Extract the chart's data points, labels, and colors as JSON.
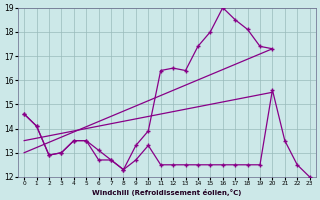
{
  "xlabel": "Windchill (Refroidissement éolien,°C)",
  "background_color": "#cce8e8",
  "line_color": "#880088",
  "grid_color": "#99bbbb",
  "xlim": [
    -0.5,
    23.5
  ],
  "ylim": [
    12,
    19
  ],
  "yticks": [
    12,
    13,
    14,
    15,
    16,
    17,
    18,
    19
  ],
  "xticks": [
    0,
    1,
    2,
    3,
    4,
    5,
    6,
    7,
    8,
    9,
    10,
    11,
    12,
    13,
    14,
    15,
    16,
    17,
    18,
    19,
    20,
    21,
    22,
    23
  ],
  "line1_x": [
    0,
    1,
    2,
    3,
    4,
    5,
    6,
    7,
    8,
    9,
    10,
    11,
    12,
    13,
    14,
    15,
    16,
    17,
    18,
    19,
    20
  ],
  "line1_y": [
    14.6,
    14.1,
    12.9,
    13.0,
    13.5,
    13.5,
    13.1,
    12.7,
    12.3,
    13.3,
    13.9,
    16.4,
    16.5,
    16.4,
    17.4,
    18.0,
    19.0,
    18.5,
    18.1,
    17.4,
    17.3
  ],
  "line2_x": [
    0,
    1,
    2,
    3,
    4,
    5,
    6,
    7,
    8,
    9,
    10,
    11,
    12,
    13,
    14,
    15,
    16,
    17,
    18,
    19,
    20,
    21,
    22,
    23
  ],
  "line2_y": [
    14.6,
    14.1,
    12.9,
    13.0,
    13.5,
    13.5,
    12.7,
    12.7,
    12.3,
    12.7,
    13.3,
    12.5,
    12.5,
    12.5,
    12.5,
    12.5,
    12.5,
    12.5,
    12.5,
    12.5,
    15.6,
    13.5,
    12.5,
    12.0
  ],
  "line3_x": [
    0,
    20
  ],
  "line3_y": [
    13.0,
    17.3
  ],
  "line4_x": [
    0,
    20
  ],
  "line4_y": [
    13.5,
    15.5
  ]
}
